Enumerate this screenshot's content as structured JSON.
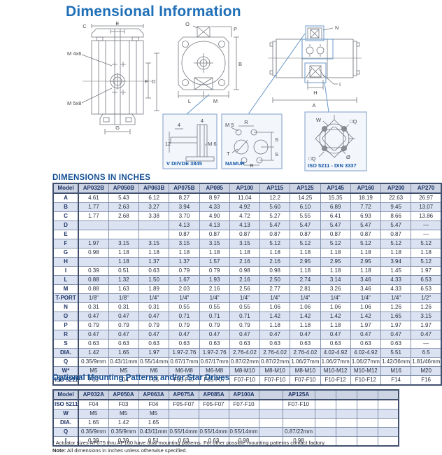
{
  "page": {
    "title": "Dimensional Information"
  },
  "drawings": {
    "top_view": {
      "c": "C",
      "e": "E",
      "m4x6": "M 4x6",
      "f": "F",
      "d": "D",
      "m5x8": "M 5x8",
      "g": "G"
    },
    "front_view": {
      "o": "O",
      "p": "P",
      "b": "B",
      "l": "L",
      "m": "M"
    },
    "side_view": {
      "n": "N",
      "h": "H",
      "i": "I",
      "a": "A"
    },
    "vdi_box": {
      "title": "V DI/VDE 3845",
      "dim_top1": "4",
      "dim_top2": "4",
      "dim_left": "12",
      "dim_thread": "M 6"
    },
    "namur_box": {
      "title": "NAMUR",
      "m5": "M 5",
      "r_top": "R",
      "t": "T",
      "s_upper": "S",
      "s_lower": "S",
      "r_bottom": "R"
    },
    "iso_box": {
      "title": "ISO 5211 - DIN 3337",
      "w": "W",
      "q_top": "□Q",
      "dia": "Ø",
      "q_bottom": "□Q"
    }
  },
  "dimensions_table": {
    "title": "DIMENSIONS IN INCHES",
    "columns": [
      "Model",
      "AP032B",
      "AP050B",
      "AP063B",
      "AP075B",
      "AP085",
      "AP100",
      "AP115",
      "AP125",
      "AP145",
      "AP160",
      "AP200",
      "AP270"
    ],
    "rows": [
      {
        "label": "A",
        "values": [
          "4.61",
          "5.43",
          "6.12",
          "8.27",
          "8.97",
          "11.04",
          "12.2",
          "14.25",
          "15.35",
          "18.19",
          "22.63",
          "26.97"
        ]
      },
      {
        "label": "B",
        "values": [
          "1.77",
          "2.63",
          "3.27",
          "3.94",
          "4.33",
          "4.92",
          "5.60",
          "6.10",
          "6.89",
          "7.72",
          "9.45",
          "13.07"
        ]
      },
      {
        "label": "C",
        "values": [
          "1.77",
          "2.68",
          "3.38",
          "3.70",
          "4.90",
          "4.72",
          "5.27",
          "5.55",
          "6.41",
          "6.93",
          "8.66",
          "13.86"
        ]
      },
      {
        "label": "D",
        "values": [
          "",
          "",
          "",
          "4.13",
          "4.13",
          "4.13",
          "5.47",
          "5.47",
          "5.47",
          "5.47",
          "5.47",
          "—"
        ]
      },
      {
        "label": "E",
        "values": [
          "",
          "",
          "",
          "0.87",
          "0.87",
          "0.87",
          "0.87",
          "0.87",
          "0.87",
          "0.87",
          "0.87",
          "—"
        ]
      },
      {
        "label": "F",
        "values": [
          "1.97",
          "3.15",
          "3.15",
          "3.15",
          "3.15",
          "3.15",
          "5.12",
          "5.12",
          "5.12",
          "5.12",
          "5.12",
          "5.12"
        ]
      },
      {
        "label": "G",
        "values": [
          "0.98",
          "1.18",
          "1.18",
          "1.18",
          "1.18",
          "1.18",
          "1.18",
          "1.18",
          "1.18",
          "1.18",
          "1.18",
          "1.18"
        ]
      },
      {
        "label": "H",
        "values": [
          "",
          "1.18",
          "1.37",
          "1.37",
          "1.57",
          "2.16",
          "2.16",
          "2.95",
          "2.95",
          "2.95",
          "3.94",
          "5.12"
        ]
      },
      {
        "label": "I",
        "values": [
          "0.39",
          "0.51",
          "0.63",
          "0.79",
          "0.79",
          "0.98",
          "0.98",
          "1.18",
          "1.18",
          "1.18",
          "1.45",
          "1.97"
        ]
      },
      {
        "label": "L",
        "values": [
          "0.88",
          "1.32",
          "1.50",
          "1.67",
          "1.93",
          "2.16",
          "2.50",
          "2.74",
          "3.14",
          "3.46",
          "4.33",
          "6.53"
        ]
      },
      {
        "label": "M",
        "values": [
          "0.88",
          "1.63",
          "1.89",
          "2.03",
          "2.16",
          "2.56",
          "2.77",
          "2.81",
          "3.26",
          "3.46",
          "4.33",
          "6.53"
        ]
      },
      {
        "label": "T-PORT",
        "values": [
          "1/8\"",
          "1/8\"",
          "1/4\"",
          "1/4\"",
          "1/4\"",
          "1/4\"",
          "1/4\"",
          "1/4\"",
          "1/4\"",
          "1/4\"",
          "1/4\"",
          "1/2\""
        ]
      },
      {
        "label": "N",
        "values": [
          "0.31",
          "0.31",
          "0.31",
          "0.55",
          "0.55",
          "0.55",
          "1.06",
          "1.06",
          "1.06",
          "1.06",
          "1.26",
          "1.26"
        ]
      },
      {
        "label": "O",
        "values": [
          "0.47",
          "0.47",
          "0.47",
          "0.71",
          "0.71",
          "0.71",
          "1.42",
          "1.42",
          "1.42",
          "1.42",
          "1.65",
          "3.15"
        ]
      },
      {
        "label": "P",
        "values": [
          "0.79",
          "0.79",
          "0.79",
          "0.79",
          "0.79",
          "0.79",
          "1.18",
          "1.18",
          "1.18",
          "1.97",
          "1.97",
          "1.97"
        ]
      },
      {
        "label": "R",
        "values": [
          "0.47",
          "0.47",
          "0.47",
          "0.47",
          "0.47",
          "0.47",
          "0.47",
          "0.47",
          "0.47",
          "0.47",
          "0.47",
          "0.47"
        ]
      },
      {
        "label": "S",
        "values": [
          "0.63",
          "0.63",
          "0.63",
          "0.63",
          "0.63",
          "0.63",
          "0.63",
          "0.63",
          "0.63",
          "0.63",
          "0.63",
          "—"
        ]
      },
      {
        "label": "DIA.",
        "values": [
          "1.42",
          "1.65",
          "1.97",
          "1.97-2.76",
          "1.97-2.76",
          "2.76-4.02",
          "2.76-4.02",
          "2.76-4.02",
          "4.02-4.92",
          "4.02-4.92",
          "5.51",
          "6.5"
        ]
      },
      {
        "label": "Q",
        "values": [
          "0.35/9mm",
          "0.43/11mm",
          "0.55/14mm",
          "0.67/17mm",
          "0.67/17mm",
          "0.87/22mm",
          "0.87/22mm",
          "1.06/27mm",
          "1.06/27mm",
          "1.06/27mm",
          "1.42/36mm",
          "1.81/46mm"
        ]
      },
      {
        "label": "W*",
        "values": [
          "M5",
          "M5",
          "M6",
          "M6-M8",
          "M6-M8",
          "M8-M10",
          "M8-M10",
          "M8-M10",
          "M10-M12",
          "M10-M12",
          "M16",
          "M20"
        ]
      },
      {
        "label": "ISO 5211*",
        "values": [
          "F03",
          "F04",
          "F05",
          "F05-F07",
          "F05-F07",
          "F07-F10",
          "F07-F10",
          "F07-F10",
          "F10-F12",
          "F10-F12",
          "F14",
          "F16"
        ]
      }
    ]
  },
  "optional_table": {
    "title": "Optional Mounting Patterns and/or Star Drives",
    "columns": [
      "Model",
      "AP032A",
      "AP050A",
      "AP063A",
      "AP075A",
      "AP085A",
      "AP100A",
      "",
      "AP125A",
      "",
      "",
      "",
      ""
    ],
    "rows": [
      {
        "label": "ISO 5211*",
        "values": [
          "F04",
          "F03",
          "F04",
          "F05-F07",
          "F05-F07",
          "F07-F10",
          "",
          "F07-F10",
          "",
          "",
          "",
          ""
        ]
      },
      {
        "label": "W",
        "values": [
          "M5",
          "M5",
          "M5",
          "",
          "",
          "",
          "",
          "",
          "",
          "",
          "",
          ""
        ]
      },
      {
        "label": "DIA.",
        "values": [
          "1.65",
          "1.42",
          "1.65",
          "",
          "",
          "",
          "",
          "",
          "",
          "",
          "",
          ""
        ]
      },
      {
        "label": "Q",
        "values": [
          "0.35/9mm",
          "0.35/9mm",
          "0.43/11mm",
          "0.55/14mm",
          "0.55/14mm",
          "0.55/14mm",
          "",
          "0.87/22mm",
          "",
          "",
          "",
          ""
        ]
      },
      {
        "label": "I",
        "values": [
          "0.39",
          "0.39",
          "0.51",
          "0.63",
          "0.63",
          "0.98",
          "",
          "0.98",
          "",
          "",
          "",
          ""
        ]
      }
    ]
  },
  "footnotes": {
    "asterisk": "* Actuator sizes AP075 thru AP160 have dual mounting patterns. For other possible mounting patterns contact factory.",
    "note_label": "Note:",
    "note_text": "All dimensions in inches unless otherwise specified."
  }
}
